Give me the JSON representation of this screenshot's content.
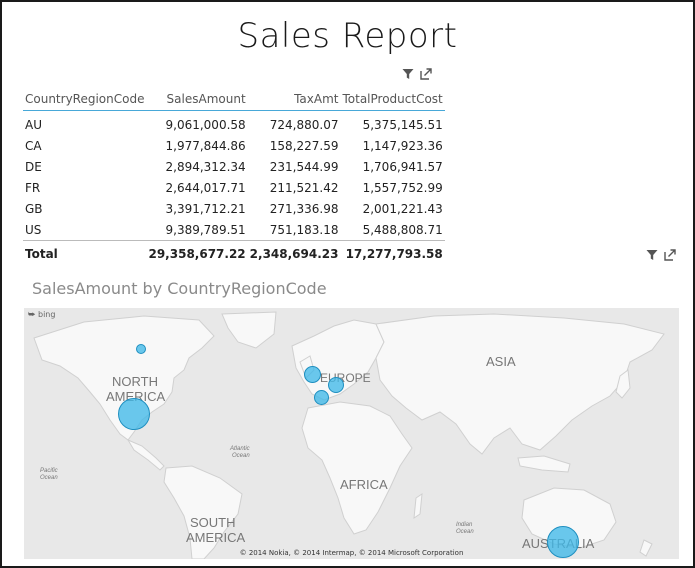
{
  "report": {
    "title": "Sales Report"
  },
  "table": {
    "columns": [
      "CountryRegionCode",
      "SalesAmount",
      "TaxAmt",
      "TotalProductCost"
    ],
    "rows": [
      {
        "code": "AU",
        "sales": "9,061,000.58",
        "tax": "724,880.07",
        "cost": "5,375,145.51"
      },
      {
        "code": "CA",
        "sales": "1,977,844.86",
        "tax": "158,227.59",
        "cost": "1,147,923.36"
      },
      {
        "code": "DE",
        "sales": "2,894,312.34",
        "tax": "231,544.99",
        "cost": "1,706,941.57"
      },
      {
        "code": "FR",
        "sales": "2,644,017.71",
        "tax": "211,521.42",
        "cost": "1,557,752.99"
      },
      {
        "code": "GB",
        "sales": "3,391,712.21",
        "tax": "271,336.98",
        "cost": "2,001,221.43"
      },
      {
        "code": "US",
        "sales": "9,389,789.51",
        "tax": "751,183.18",
        "cost": "5,488,808.71"
      }
    ],
    "total": {
      "label": "Total",
      "sales": "29,358,677.22",
      "tax": "2,348,694.23",
      "cost": "17,277,793.58"
    }
  },
  "map": {
    "title": "SalesAmount by CountryRegionCode",
    "provider": "bing",
    "copyright": "© 2014 Nokia, © 2014 Intermap, © 2014 Microsoft Corporation",
    "labels": {
      "north_america": [
        "NORTH",
        "AMERICA"
      ],
      "europe": "EUROPE",
      "asia": "ASIA",
      "africa": "AFRICA",
      "south_america": [
        "SOUTH",
        "AMERICA"
      ],
      "australia": "AUSTRALIA",
      "atlantic": [
        "Atlantic",
        "Ocean"
      ],
      "pacific": [
        "Pacific",
        "Ocean"
      ],
      "indian": [
        "Indian",
        "Ocean"
      ]
    },
    "bubble_color": "#40b9e8"
  },
  "icons": {
    "filter": "filter-icon",
    "popout": "popout-icon"
  }
}
